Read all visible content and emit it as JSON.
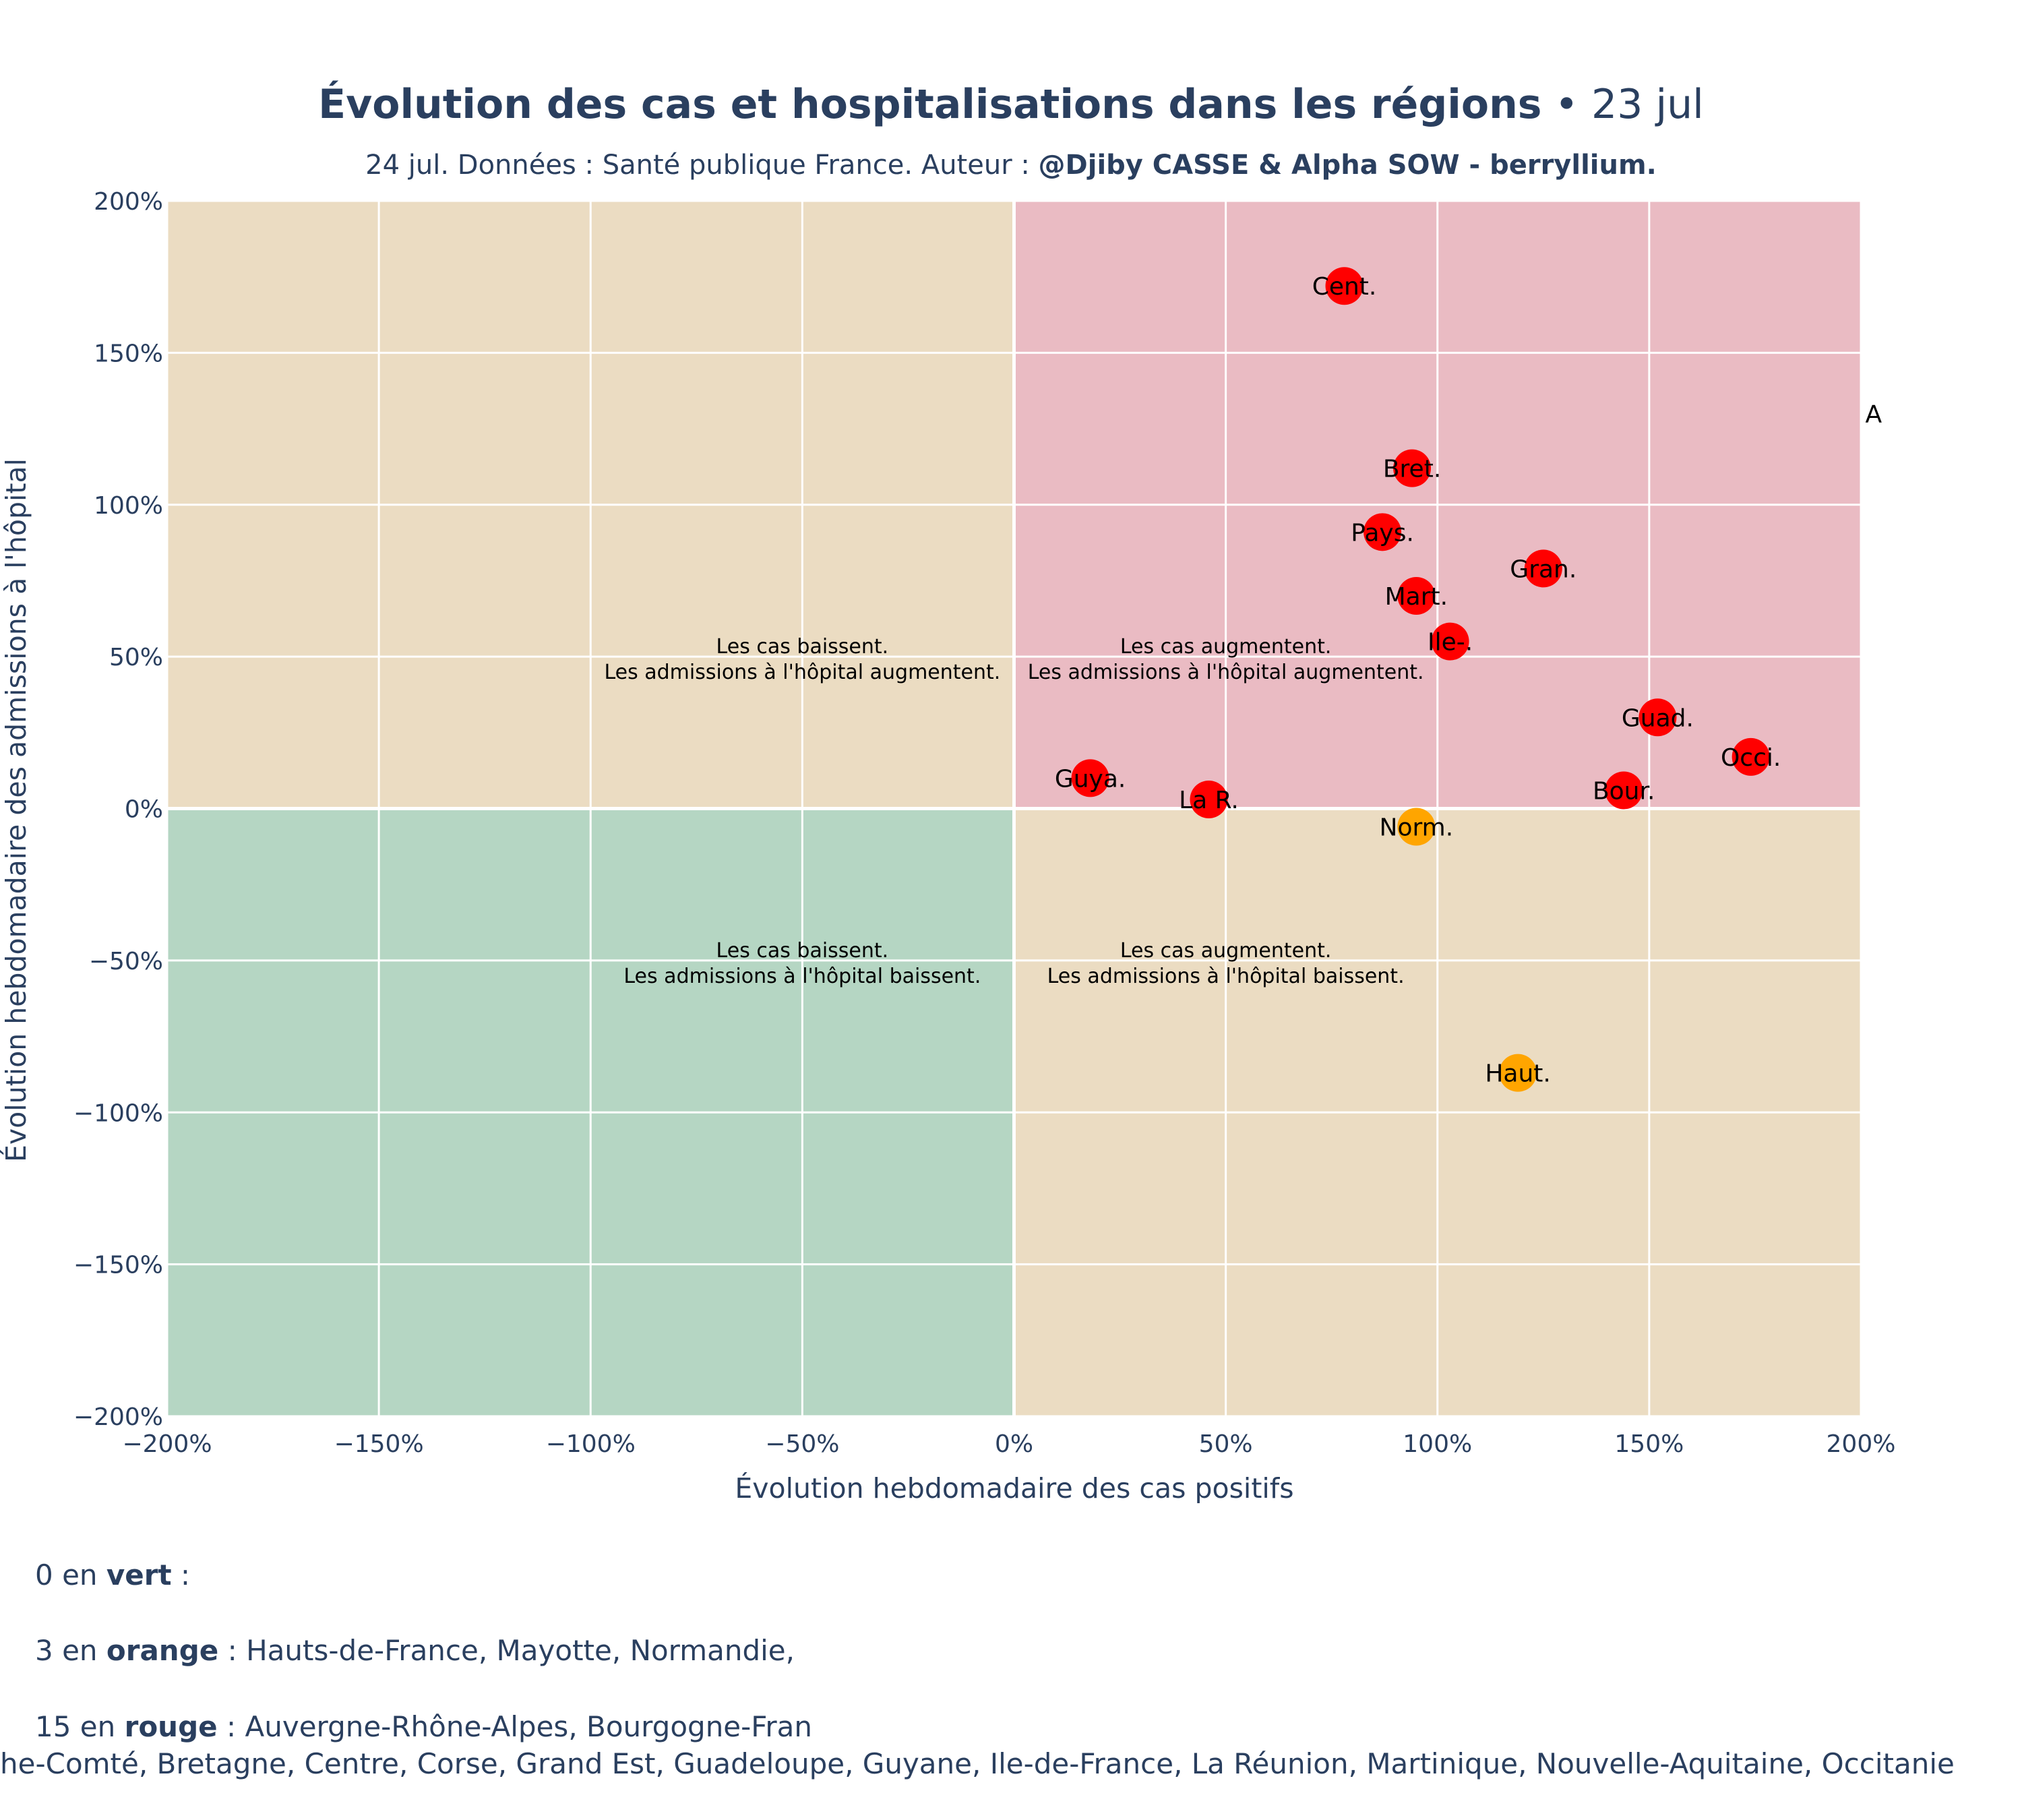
{
  "chart_data": {
    "type": "scatter",
    "title": "Évolution des cas et hospitalisations dans les régions",
    "title_date": "23 jul",
    "subtitle_prefix": "24 jul. Données : Santé publique France. Auteur : ",
    "subtitle_author": "@Djiby CASSE & Alpha SOW - berryllium.",
    "xlabel": "Évolution hebdomadaire des cas positifs",
    "ylabel": "Évolution hebdomadaire des admissions à l'hôpital",
    "xlim": [
      -200,
      200
    ],
    "ylim": [
      -200,
      200
    ],
    "x_ticks": [
      -200,
      -150,
      -100,
      -50,
      0,
      50,
      100,
      150,
      200
    ],
    "y_ticks": [
      -200,
      -150,
      -100,
      -50,
      0,
      50,
      100,
      150,
      200
    ],
    "tick_suffix": "%",
    "grid": true,
    "quadrant_colors": {
      "top_left": "#ebdcc2",
      "top_right": "#eabbc3",
      "bottom_left": "#b5d6c3",
      "bottom_right": "#ebdcc2"
    },
    "annotations": [
      {
        "x": -50,
        "y": 50,
        "lines": [
          "Les cas baissent.",
          "Les admissions à l'hôpital augmentent."
        ]
      },
      {
        "x": 50,
        "y": 50,
        "lines": [
          "Les cas augmentent.",
          "Les admissions à l'hôpital augmentent."
        ]
      },
      {
        "x": -50,
        "y": -50,
        "lines": [
          "Les cas baissent.",
          "Les admissions à l'hôpital baissent."
        ]
      },
      {
        "x": 50,
        "y": -50,
        "lines": [
          "Les cas augmentent.",
          "Les admissions à l'hôpital baissent."
        ]
      }
    ],
    "points": [
      {
        "label": "Cent.",
        "x": 78,
        "y": 172,
        "color": "#ff0000"
      },
      {
        "label": "Bret.",
        "x": 94,
        "y": 112,
        "color": "#ff0000"
      },
      {
        "label": "Pays.",
        "x": 87,
        "y": 91,
        "color": "#ff0000"
      },
      {
        "label": "Gran.",
        "x": 125,
        "y": 79,
        "color": "#ff0000"
      },
      {
        "label": "Mart.",
        "x": 95,
        "y": 70,
        "color": "#ff0000"
      },
      {
        "label": "Ile-.",
        "x": 103,
        "y": 55,
        "color": "#ff0000"
      },
      {
        "label": "Guad.",
        "x": 152,
        "y": 30,
        "color": "#ff0000"
      },
      {
        "label": "Occi.",
        "x": 174,
        "y": 17,
        "color": "#ff0000"
      },
      {
        "label": "Bour.",
        "x": 144,
        "y": 6,
        "color": "#ff0000"
      },
      {
        "label": "Guya.",
        "x": 18,
        "y": 10,
        "color": "#ff0000"
      },
      {
        "label": "La R.",
        "x": 46,
        "y": 3,
        "color": "#ff0000"
      },
      {
        "label": "Norm.",
        "x": 95,
        "y": -6,
        "color": "#ffa500"
      },
      {
        "label": "Haut.",
        "x": 119,
        "y": -87,
        "color": "#ffa500"
      },
      {
        "label": "A",
        "x": 203,
        "y": 130,
        "color": "none"
      }
    ]
  },
  "legend": {
    "green_count": "0 en ",
    "green_word": "vert",
    "green_rest": " :",
    "orange_count": "3 en ",
    "orange_word": "orange",
    "orange_rest": " : Hauts-de-France, Mayotte, Normandie,",
    "red_count": "15 en ",
    "red_word": "rouge",
    "red_rest": " : Auvergne-Rhône-Alpes, Bourgogne-Fran",
    "red_rest_line2": "he-Comté, Bretagne, Centre, Corse, Grand Est, Guadeloupe, Guyane, Ile-de-France, La Réunion, Martinique, Nouvelle-Aquitaine, Occitanie"
  }
}
